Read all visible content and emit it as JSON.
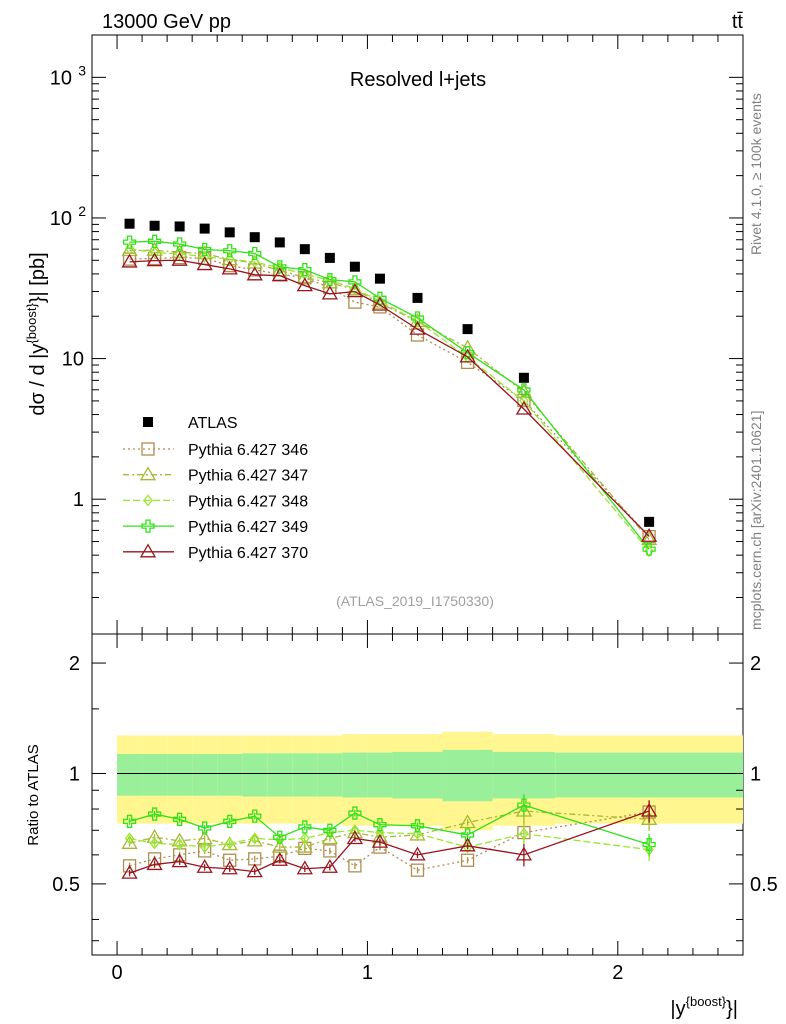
{
  "header": {
    "energy_label": "13000 GeV pp",
    "process_label": "tt̄"
  },
  "side": {
    "rivet_label": "Rivet 4.1.0, ≥ 100k events",
    "mcplots_label": "mcplots.cern.ch [arXiv:2401.10621]"
  },
  "chart_data": {
    "type": "scatter",
    "title": "Resolved l+jets",
    "analysis_id": "(ATLAS_2019_I1750330)",
    "ylabel": "dσ / d |y^{boost}| [pb]",
    "ylabel_main": "dσ / d |y",
    "ylabel_sup": "{boost}",
    "ylabel_tail": "}| [pb]",
    "ratio_ylabel": "Ratio to ATLAS",
    "xlabel_main": "|y",
    "xlabel_sup": "{boost}",
    "xlabel_tail": "}|",
    "xlim": [
      -0.1,
      2.5
    ],
    "ylim": [
      0.11,
      2000
    ],
    "ratio_ylim": [
      0.32,
      2.4
    ],
    "x_ticks": [
      "0",
      "1",
      "2"
    ],
    "y_ticks": [
      {
        "label": "10",
        "sup": "3"
      },
      {
        "label": "10",
        "sup": "2"
      },
      {
        "label": "10",
        "sup": ""
      },
      {
        "label": "1",
        "sup": ""
      }
    ],
    "ratio_ticks": [
      "0.5",
      "1",
      "2"
    ],
    "bins": [
      0.0,
      0.1,
      0.2,
      0.3,
      0.4,
      0.5,
      0.6,
      0.7,
      0.8,
      0.9,
      1.0,
      1.1,
      1.3,
      1.5,
      1.75,
      2.5
    ],
    "x": [
      0.05,
      0.15,
      0.25,
      0.35,
      0.45,
      0.55,
      0.65,
      0.75,
      0.85,
      0.95,
      1.05,
      1.2,
      1.4,
      1.625,
      2.125
    ],
    "atlas": {
      "name": "ATLAS",
      "values": [
        91,
        88,
        87,
        84,
        79,
        73,
        67,
        60,
        52,
        45,
        37,
        27,
        16.2,
        7.3,
        0.69
      ]
    },
    "bands": {
      "inner": [
        0.13,
        0.13,
        0.13,
        0.13,
        0.13,
        0.135,
        0.135,
        0.135,
        0.135,
        0.14,
        0.14,
        0.145,
        0.16,
        0.145,
        0.14
      ],
      "outer": [
        0.27,
        0.27,
        0.27,
        0.27,
        0.27,
        0.27,
        0.27,
        0.27,
        0.27,
        0.28,
        0.28,
        0.28,
        0.3,
        0.28,
        0.27
      ]
    },
    "series": [
      {
        "name": "Pythia 6.427 346",
        "color": "#b08d4f",
        "dash": "2,3",
        "marker": "square",
        "ratio": [
          0.56,
          0.585,
          0.6,
          0.615,
          0.58,
          0.585,
          0.595,
          0.625,
          0.615,
          0.56,
          0.63,
          0.545,
          0.58,
          0.69,
          0.785
        ]
      },
      {
        "name": "Pythia 6.427 347",
        "color": "#a6b836",
        "dash": "6,3,2,3",
        "marker": "triangle",
        "ratio": [
          0.645,
          0.67,
          0.655,
          0.665,
          0.64,
          0.655,
          0.63,
          0.63,
          0.665,
          0.69,
          0.67,
          0.68,
          0.735,
          0.79,
          0.75
        ]
      },
      {
        "name": "Pythia 6.427 348",
        "color": "#9be630",
        "dash": "7,3",
        "marker": "diamond",
        "ratio": [
          0.665,
          0.645,
          0.64,
          0.63,
          0.645,
          0.665,
          0.66,
          0.665,
          0.69,
          0.7,
          0.69,
          0.685,
          0.63,
          0.685,
          0.62
        ]
      },
      {
        "name": "Pythia 6.427 349",
        "color": "#33e01a",
        "dash": "",
        "marker": "cross",
        "ratio": [
          0.74,
          0.775,
          0.75,
          0.71,
          0.74,
          0.765,
          0.67,
          0.715,
          0.7,
          0.78,
          0.725,
          0.72,
          0.68,
          0.82,
          0.64
        ]
      },
      {
        "name": "Pythia 6.427 370",
        "color": "#99141f",
        "dash": "",
        "marker": "triangle",
        "ratio": [
          0.535,
          0.565,
          0.575,
          0.555,
          0.55,
          0.54,
          0.58,
          0.55,
          0.555,
          0.665,
          0.65,
          0.6,
          0.635,
          0.6,
          0.79
        ]
      }
    ]
  }
}
